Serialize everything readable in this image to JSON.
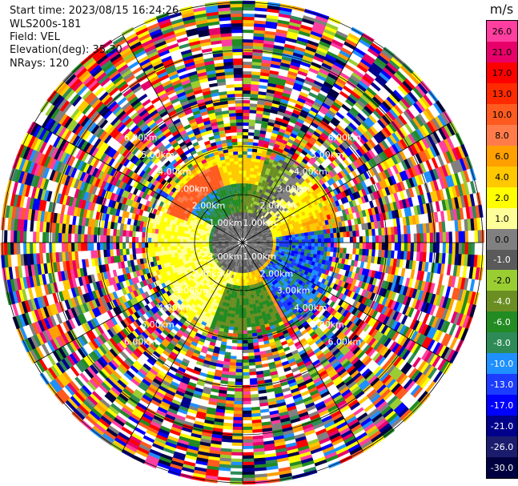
{
  "header": {
    "start_time": "Start time: 2023/08/15 16:24:26",
    "station": "WLS200s-181",
    "field": "Field: VEL",
    "elevation": "Elevation(deg): 35.30",
    "nrays": "NRays: 120"
  },
  "colorbar": {
    "unit": "m/s",
    "labels": [
      "26.0",
      "21.0",
      "17.0",
      "13.0",
      "10.0",
      "8.0",
      "6.0",
      "4.0",
      "2.0",
      "1.0",
      "0.0",
      "-1.0",
      "-2.0",
      "-4.0",
      "-6.0",
      "-8.0",
      "-10.0",
      "-13.0",
      "-17.0",
      "-21.0",
      "-26.0",
      "-30.0"
    ],
    "colors": [
      "#ff3fa0",
      "#e8006a",
      "#ff0000",
      "#ff2a00",
      "#ff5a1f",
      "#ff7c4a",
      "#ffa000",
      "#ffc800",
      "#ffff00",
      "#ffff99",
      "#808080",
      "#5a5a5a",
      "#9acd32",
      "#6b8e23",
      "#228b22",
      "#2e8b57",
      "#1e90ff",
      "#1c3cff",
      "#0000ff",
      "#00008b",
      "#1c1c6e",
      "#000040"
    ]
  },
  "range_rings": {
    "labels": [
      "1.00km",
      "2.00km",
      "3.00km",
      "4.00km",
      "5.00km",
      "6.00km"
    ]
  }
}
